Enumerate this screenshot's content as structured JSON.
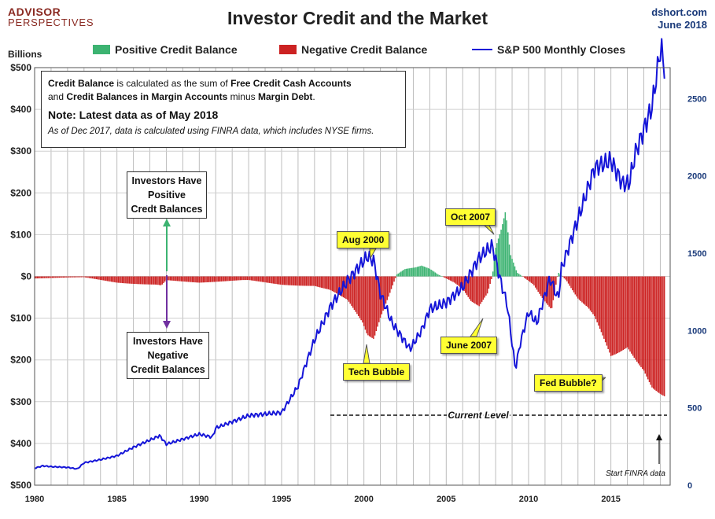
{
  "header": {
    "logo_main": "ADVISOR",
    "logo_sub": "PERSPECTIVES",
    "title": "Investor Credit and the Market",
    "source": "dshort.com",
    "date": "June 2018"
  },
  "legend": {
    "positive": "Positive Credit Balance",
    "negative": "Negative Credit Balance",
    "sp500": "S&P 500 Monthly Closes"
  },
  "note_box": {
    "bold1": "Credit Balance",
    "text1": " is calculated as the sum of ",
    "bold2": "Free Credit Cash Accounts",
    "text2": "and ",
    "bold3": "Credit Balances in Margin Accounts",
    "text3": " minus ",
    "bold4": "Margin Debt",
    "text4": ".",
    "latest": "Note: Latest data as of May 2018",
    "dec": "As of Dec 2017, data is calculated using FINRA data, which includes NYSE firms."
  },
  "callouts": {
    "positive_l1": "Investors Have",
    "positive_l2": "Positive",
    "positive_l3": "Credt Balances",
    "negative_l1": "Investors Have",
    "negative_l2": "Negative",
    "negative_l3": "Credit Balances"
  },
  "annotations": {
    "aug2000": "Aug 2000",
    "oct2007": "Oct 2007",
    "june2007": "June 2007",
    "tech_bubble": "Tech Bubble",
    "fed_bubble": "Fed Bubble?",
    "current_level": "Current Level",
    "start_finra": "Start FINRA data"
  },
  "colors": {
    "positive": "#3cb371",
    "negative": "#cc2222",
    "sp500": "#1515d8",
    "callout_fill": "#ffff33"
  },
  "chart_data": {
    "type": "bar",
    "title": "Investor Credit and the Market",
    "ylabel": "Billions",
    "xlim": [
      1980,
      2018.6
    ],
    "ylim": [
      -500,
      500
    ],
    "y2lim": [
      0,
      2700
    ],
    "x_ticks": [
      "1980",
      "1985",
      "1990",
      "1995",
      "2000",
      "2005",
      "2010",
      "2015"
    ],
    "y_ticks": [
      "$500",
      "$400",
      "$300",
      "$200",
      "$100",
      "$0",
      "$100",
      "$200",
      "$300",
      "$400",
      "$500"
    ],
    "y2_ticks": [
      "0",
      "500",
      "1000",
      "1500",
      "2000",
      "2500"
    ],
    "grid": true,
    "legend_position": "top",
    "credit_balance": {
      "name": "Credit Balance",
      "unit": "Billions",
      "x": [
        1980,
        1983,
        1985,
        1987.7,
        1988,
        1990,
        1993,
        1995,
        1997,
        1998,
        1999,
        1999.9,
        2000.2,
        2000.6,
        2001,
        2001.5,
        2002,
        2002.5,
        2003,
        2003.5,
        2004,
        2004.5,
        2005,
        2005.5,
        2006,
        2006.5,
        2007,
        2007.5,
        2007.8,
        2008,
        2008.3,
        2008.6,
        2008.9,
        2009.3,
        2009.8,
        2010.3,
        2010.8,
        2011.4,
        2011.8,
        2012.3,
        2013,
        2014,
        2015,
        2016,
        2017,
        2017.5,
        2018,
        2018.33
      ],
      "values": [
        -5,
        -2,
        -15,
        -25,
        -10,
        -15,
        -10,
        -20,
        -25,
        -40,
        -60,
        -110,
        -140,
        -150,
        -100,
        -50,
        5,
        20,
        25,
        30,
        20,
        5,
        -5,
        -15,
        -30,
        -60,
        -75,
        -45,
        0,
        80,
        130,
        185,
        60,
        10,
        -5,
        -20,
        -50,
        -80,
        10,
        -10,
        -60,
        -110,
        -200,
        -170,
        -230,
        -280,
        -310,
        -330
      ]
    },
    "sp500_monthly_closes": {
      "name": "S&P 500 Monthly Closes",
      "x": [
        1980,
        1980.5,
        1981,
        1982,
        1982.6,
        1983,
        1984,
        1985,
        1986,
        1987.6,
        1988,
        1990,
        1990.8,
        1991,
        1993,
        1995,
        1996,
        1997,
        1998,
        1999,
        2000.2,
        2000.6,
        2001,
        2001.7,
        2002.8,
        2003.5,
        2004,
        2005,
        2006,
        2007,
        2007.8,
        2008.3,
        2008.7,
        2009.2,
        2009.5,
        2010,
        2010.5,
        2011.3,
        2011.8,
        2012,
        2013,
        2014,
        2015,
        2015.7,
        2016.1,
        2016.5,
        2017,
        2017.5,
        2018.05,
        2018.2,
        2018.33
      ],
      "values": [
        110,
        125,
        120,
        115,
        105,
        145,
        165,
        190,
        245,
        320,
        265,
        330,
        310,
        370,
        450,
        470,
        640,
        940,
        1160,
        1320,
        1480,
        1450,
        1240,
        1050,
        880,
        1000,
        1140,
        1180,
        1280,
        1470,
        1550,
        1320,
        1170,
        750,
        920,
        1120,
        1050,
        1340,
        1200,
        1400,
        1720,
        2050,
        2100,
        1950,
        1950,
        2150,
        2300,
        2450,
        2850,
        2700,
        2720
      ]
    }
  }
}
